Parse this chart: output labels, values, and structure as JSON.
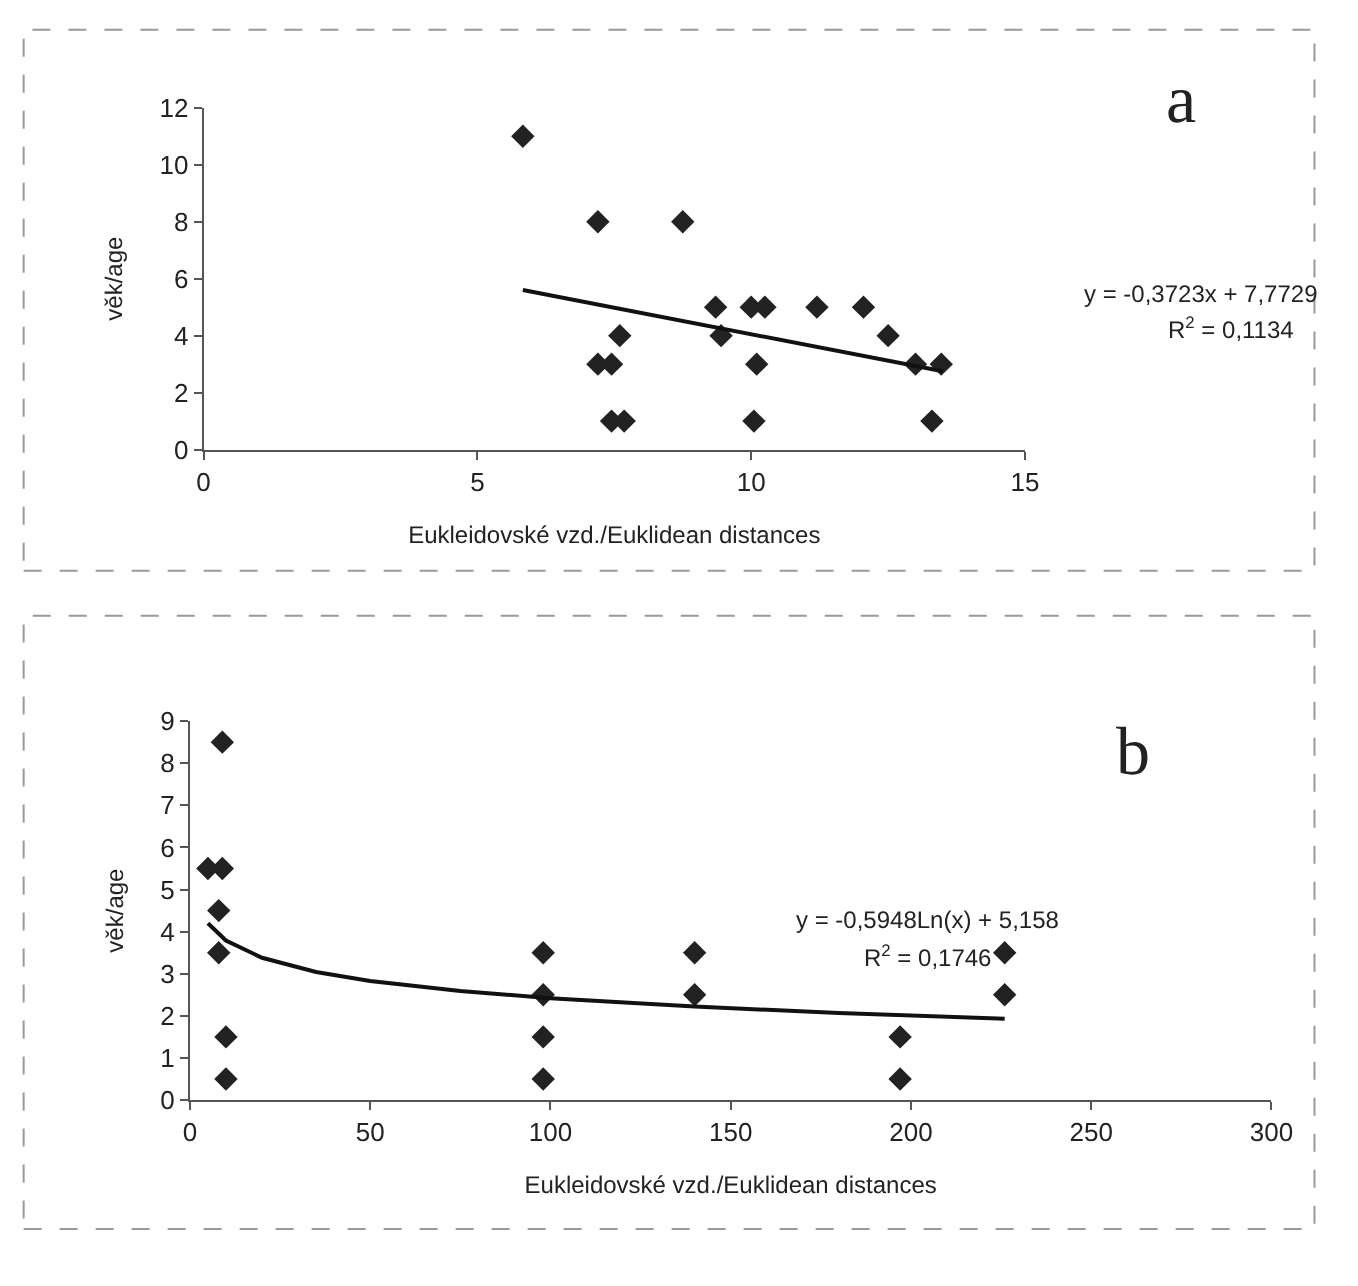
{
  "chart_data": [
    {
      "type": "scatter",
      "xlabel": "Eukleidovské vzd./Euklidean distances",
      "ylabel": "věk/age",
      "annotations": [
        "a",
        "y = -0,3723x + 7,7729",
        "R$^{2}$ = 0,1134"
      ],
      "xlim": [
        0,
        15
      ],
      "ylim": [
        0,
        12
      ],
      "xticks": [
        0,
        5,
        10,
        15
      ],
      "yticks": [
        0,
        2,
        4,
        6,
        8,
        10,
        12
      ],
      "marker": "diamond",
      "series": [
        {
          "color": "#222222",
          "x": [
            5.83,
            7.2,
            8.75,
            7.2,
            7.45,
            7.6,
            7.45,
            7.68,
            9.35,
            9.45,
            10.0,
            10.25,
            10.1,
            10.05,
            11.2,
            12.05,
            12.5,
            13.0,
            13.47,
            13.3
          ],
          "values": [
            11,
            8,
            8,
            3,
            3,
            4,
            1,
            1,
            5,
            4,
            5,
            5,
            3,
            1,
            5,
            5,
            4,
            3,
            3,
            1
          ]
        },
        {
          "type": "line",
          "marker": "none",
          "color": "#111111",
          "x": [
            5.83,
            13.5
          ],
          "values": [
            5.6,
            2.75
          ]
        }
      ]
    },
    {
      "type": "scatter",
      "xlabel": "Eukleidovské vzd./Euklidean distances",
      "ylabel": "věk/age",
      "annotations": [
        "b",
        "y = -0,5948Ln(x) + 5,158",
        "R$^{2}$ = 0,1746"
      ],
      "xlim": [
        0,
        300
      ],
      "ylim": [
        0,
        9
      ],
      "xticks": [
        0,
        50,
        100,
        150,
        200,
        250,
        300
      ],
      "yticks": [
        0,
        1,
        2,
        3,
        4,
        5,
        6,
        7,
        8,
        9
      ],
      "marker": "diamond",
      "series": [
        {
          "color": "#222222",
          "x": [
            5,
            9,
            9,
            8,
            8,
            10,
            10,
            98,
            98,
            98,
            98,
            140,
            140,
            197,
            197,
            226,
            226
          ],
          "values": [
            5.5,
            5.5,
            8.5,
            4.5,
            3.5,
            1.5,
            0.5,
            3.5,
            2.5,
            1.5,
            0.5,
            3.5,
            2.5,
            1.5,
            0.5,
            3.5,
            2.5
          ]
        },
        {
          "type": "line",
          "marker": "none",
          "color": "#111111",
          "x": [
            5,
            10,
            20,
            35,
            50,
            75,
            100,
            140,
            180,
            226
          ],
          "values": [
            4.2,
            3.79,
            3.38,
            3.04,
            2.83,
            2.59,
            2.42,
            2.22,
            2.07,
            1.93
          ]
        }
      ]
    }
  ]
}
